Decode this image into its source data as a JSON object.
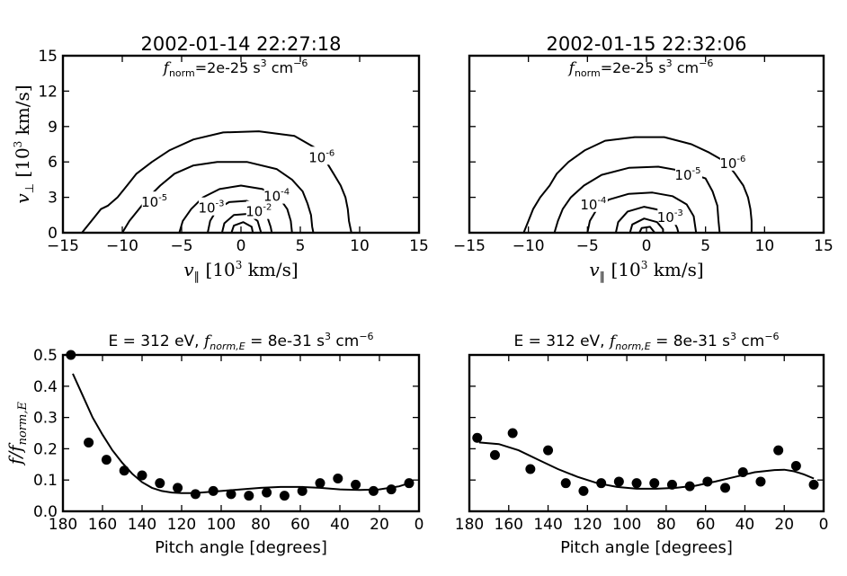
{
  "chart_data": [
    {
      "type": "contour",
      "title": "2002-01-14 22:27:18",
      "annotation": {
        "main": "f",
        "sub": "norm",
        "value": "=2e-25 s",
        "exp1": "3",
        "unit": " cm",
        "exp2": "−6"
      },
      "xlabel": {
        "sym": "v",
        "sub": "∥",
        "units": "[10",
        "exp": "3",
        "rest": " km/s]"
      },
      "ylabel": {
        "sym": "v",
        "sub": "⊥",
        "units": "[10",
        "exp": "3",
        "rest": " km/s]"
      },
      "xlim": [
        -15,
        15
      ],
      "ylim": [
        0,
        15
      ],
      "xticks": [
        "−15",
        "−10",
        "−5",
        "0",
        "5",
        "10",
        "15"
      ],
      "yticks": [
        "0",
        "3",
        "6",
        "9",
        "12",
        "15"
      ],
      "contours": [
        {
          "label": "10",
          "exp": "-6",
          "points": [
            [
              -13.4,
              0
            ],
            [
              -12.6,
              1.0
            ],
            [
              -11.8,
              2.0
            ],
            [
              -11.2,
              2.3
            ],
            [
              -10.4,
              3.0
            ],
            [
              -9.6,
              4.0
            ],
            [
              -8.8,
              5.0
            ],
            [
              -7.5,
              6.0
            ],
            [
              -6.0,
              7.0
            ],
            [
              -4.0,
              7.9
            ],
            [
              -1.5,
              8.5
            ],
            [
              1.5,
              8.6
            ],
            [
              4.5,
              8.2
            ],
            [
              6.6,
              7.0
            ],
            [
              7.2,
              6.0
            ],
            [
              7.8,
              5.0
            ],
            [
              8.4,
              4.0
            ],
            [
              8.8,
              3.0
            ],
            [
              9.0,
              2.0
            ],
            [
              9.1,
              1.0
            ],
            [
              9.3,
              0
            ]
          ],
          "label_at": [
            6.8,
            6.3
          ]
        },
        {
          "label": "10",
          "exp": "-5",
          "points": [
            [
              -10.0,
              0
            ],
            [
              -9.4,
              1.0
            ],
            [
              -8.6,
              2.0
            ],
            [
              -7.8,
              3.0
            ],
            [
              -6.8,
              4.0
            ],
            [
              -5.6,
              5.0
            ],
            [
              -4.0,
              5.7
            ],
            [
              -2.0,
              6.0
            ],
            [
              0.5,
              6.0
            ],
            [
              3.0,
              5.4
            ],
            [
              4.3,
              4.5
            ],
            [
              5.2,
              3.5
            ],
            [
              5.6,
              2.5
            ],
            [
              5.9,
              1.5
            ],
            [
              6.0,
              0.5
            ],
            [
              6.1,
              0
            ]
          ],
          "label_at": [
            -7.3,
            2.5
          ]
        },
        {
          "label": "10",
          "exp": "-4",
          "points": [
            [
              -5.2,
              0
            ],
            [
              -4.9,
              1.0
            ],
            [
              -4.2,
              2.0
            ],
            [
              -3.2,
              3.0
            ],
            [
              -1.8,
              3.7
            ],
            [
              0,
              4.0
            ],
            [
              1.8,
              3.7
            ],
            [
              3.2,
              3.0
            ],
            [
              3.9,
              2.0
            ],
            [
              4.2,
              1.0
            ],
            [
              4.3,
              0
            ]
          ],
          "label_at": [
            3.0,
            3.0
          ]
        },
        {
          "label": "10",
          "exp": "-3",
          "points": [
            [
              -2.8,
              0
            ],
            [
              -2.6,
              1.0
            ],
            [
              -2.0,
              2.0
            ],
            [
              -1.0,
              2.6
            ],
            [
              0.5,
              2.7
            ],
            [
              1.6,
              2.2
            ],
            [
              2.2,
              1.4
            ],
            [
              2.5,
              0.5
            ],
            [
              2.6,
              0
            ]
          ],
          "label_at": [
            -2.5,
            2.0
          ]
        },
        {
          "label": "10",
          "exp": "-2",
          "points": [
            [
              -1.6,
              0
            ],
            [
              -1.4,
              0.8
            ],
            [
              -0.6,
              1.5
            ],
            [
              0.6,
              1.6
            ],
            [
              1.4,
              1.0
            ],
            [
              1.7,
              0
            ]
          ],
          "label_at": [
            1.5,
            1.7
          ]
        },
        {
          "label": "",
          "exp": "",
          "points": [
            [
              -0.8,
              0
            ],
            [
              -0.6,
              0.6
            ],
            [
              0.2,
              0.9
            ],
            [
              0.9,
              0.5
            ],
            [
              1.0,
              0
            ]
          ],
          "label_at": null
        }
      ]
    },
    {
      "type": "contour",
      "title": "2002-01-15 22:32:06",
      "annotation": {
        "main": "f",
        "sub": "norm",
        "value": "=2e-25 s",
        "exp1": "3",
        "unit": " cm",
        "exp2": "−6"
      },
      "xlabel": {
        "sym": "v",
        "sub": "∥",
        "units": "[10",
        "exp": "3",
        "rest": " km/s]"
      },
      "ylabel": null,
      "xlim": [
        -15,
        15
      ],
      "ylim": [
        0,
        15
      ],
      "xticks": [
        "−15",
        "−10",
        "−5",
        "0",
        "5",
        "10",
        "15"
      ],
      "yticks": [],
      "contours": [
        {
          "label": "10",
          "exp": "-6",
          "points": [
            [
              -10.4,
              0
            ],
            [
              -10.0,
              1.0
            ],
            [
              -9.6,
              2.0
            ],
            [
              -9.0,
              3.0
            ],
            [
              -8.2,
              4.0
            ],
            [
              -7.6,
              5.0
            ],
            [
              -6.6,
              6.0
            ],
            [
              -5.2,
              7.0
            ],
            [
              -3.5,
              7.8
            ],
            [
              -1.0,
              8.1
            ],
            [
              1.5,
              8.1
            ],
            [
              3.8,
              7.5
            ],
            [
              5.3,
              6.8
            ],
            [
              6.7,
              6.0
            ],
            [
              7.5,
              5.0
            ],
            [
              8.2,
              4.0
            ],
            [
              8.6,
              3.0
            ],
            [
              8.8,
              2.0
            ],
            [
              8.9,
              1.0
            ],
            [
              8.9,
              0
            ]
          ],
          "label_at": [
            7.3,
            5.8
          ]
        },
        {
          "label": "10",
          "exp": "-5",
          "points": [
            [
              -7.8,
              0
            ],
            [
              -7.5,
              1.0
            ],
            [
              -7.1,
              2.0
            ],
            [
              -6.4,
              3.0
            ],
            [
              -5.3,
              4.0
            ],
            [
              -3.8,
              4.9
            ],
            [
              -1.5,
              5.5
            ],
            [
              1.0,
              5.6
            ],
            [
              3.2,
              5.2
            ],
            [
              5.0,
              4.6
            ],
            [
              5.6,
              3.5
            ],
            [
              6.0,
              2.3
            ],
            [
              6.1,
              1.0
            ],
            [
              6.2,
              0
            ]
          ],
          "label_at": [
            3.5,
            4.8
          ]
        },
        {
          "label": "10",
          "exp": "-4",
          "points": [
            [
              -5.0,
              0
            ],
            [
              -4.8,
              1.0
            ],
            [
              -4.2,
              2.0
            ],
            [
              -3.2,
              2.8
            ],
            [
              -1.5,
              3.3
            ],
            [
              0.5,
              3.4
            ],
            [
              2.2,
              3.1
            ],
            [
              3.4,
              2.4
            ],
            [
              4.0,
              1.4
            ],
            [
              4.2,
              0
            ]
          ],
          "label_at": [
            -4.5,
            2.3
          ]
        },
        {
          "label": "10",
          "exp": "-3",
          "points": [
            [
              -2.6,
              0
            ],
            [
              -2.4,
              0.9
            ],
            [
              -1.6,
              1.8
            ],
            [
              -0.2,
              2.2
            ],
            [
              1.2,
              1.9
            ],
            [
              2.2,
              1.2
            ],
            [
              2.6,
              0.4
            ],
            [
              2.7,
              0
            ]
          ],
          "label_at": [
            2.0,
            1.2
          ]
        },
        {
          "label": "",
          "exp": "",
          "points": [
            [
              -1.4,
              0
            ],
            [
              -1.2,
              0.7
            ],
            [
              -0.2,
              1.2
            ],
            [
              0.9,
              0.9
            ],
            [
              1.4,
              0.3
            ],
            [
              1.4,
              0
            ]
          ],
          "label_at": null
        },
        {
          "label": "",
          "exp": "",
          "points": [
            [
              -0.6,
              0
            ],
            [
              -0.4,
              0.4
            ],
            [
              0.3,
              0.5
            ],
            [
              0.7,
              0
            ]
          ],
          "label_at": null
        }
      ]
    },
    {
      "type": "scatter",
      "title": {
        "pre": "E = 312 eV, ",
        "main": "f",
        "sub": "norm,E",
        "value": " = 8e-31 s",
        "exp1": "3",
        "unit": " cm",
        "exp2": "−6"
      },
      "xlabel": "Pitch angle [degrees]",
      "ylabel": {
        "main": "f/f",
        "sub": "norm,E"
      },
      "xlim": [
        180,
        0
      ],
      "ylim": [
        0,
        0.5
      ],
      "xticks": [
        "180",
        "160",
        "140",
        "120",
        "100",
        "80",
        "60",
        "40",
        "20",
        "0"
      ],
      "yticks": [
        "0.0",
        "0.1",
        "0.2",
        "0.3",
        "0.4",
        "0.5"
      ],
      "x": [
        176,
        167,
        158,
        149,
        140,
        131,
        122,
        113,
        104,
        95,
        86,
        77,
        68,
        59,
        50,
        41,
        32,
        23,
        14,
        5
      ],
      "y": [
        0.5,
        0.22,
        0.165,
        0.13,
        0.115,
        0.09,
        0.075,
        0.055,
        0.065,
        0.055,
        0.05,
        0.06,
        0.05,
        0.065,
        0.09,
        0.105,
        0.085,
        0.065,
        0.07,
        0.09
      ],
      "fit_x": [
        175,
        170,
        165,
        160,
        155,
        150,
        145,
        140,
        135,
        130,
        125,
        120,
        115,
        110,
        100,
        90,
        80,
        70,
        60,
        50,
        40,
        30,
        20,
        10,
        5
      ],
      "fit_y": [
        0.44,
        0.37,
        0.3,
        0.245,
        0.195,
        0.155,
        0.12,
        0.093,
        0.075,
        0.065,
        0.06,
        0.058,
        0.058,
        0.06,
        0.065,
        0.07,
        0.075,
        0.078,
        0.078,
        0.075,
        0.07,
        0.068,
        0.07,
        0.08,
        0.09
      ]
    },
    {
      "type": "scatter",
      "title": {
        "pre": "E = 312 eV, ",
        "main": "f",
        "sub": "norm,E",
        "value": " = 8e-31 s",
        "exp1": "3",
        "unit": " cm",
        "exp2": "−6"
      },
      "xlabel": "Pitch angle [degrees]",
      "ylabel": null,
      "xlim": [
        180,
        0
      ],
      "ylim": [
        0,
        0.5
      ],
      "xticks": [
        "180",
        "160",
        "140",
        "120",
        "100",
        "80",
        "60",
        "40",
        "20",
        "0"
      ],
      "yticks": [],
      "x": [
        176,
        167,
        158,
        149,
        140,
        131,
        122,
        113,
        104,
        95,
        86,
        77,
        68,
        59,
        50,
        41,
        32,
        23,
        14,
        5
      ],
      "y": [
        0.235,
        0.18,
        0.25,
        0.135,
        0.195,
        0.09,
        0.065,
        0.09,
        0.095,
        0.09,
        0.09,
        0.085,
        0.08,
        0.095,
        0.075,
        0.125,
        0.095,
        0.195,
        0.145,
        0.085
      ],
      "fit_x": [
        175,
        165,
        155,
        145,
        135,
        125,
        115,
        105,
        95,
        85,
        75,
        65,
        55,
        45,
        35,
        25,
        20,
        15,
        10,
        5
      ],
      "fit_y": [
        0.22,
        0.215,
        0.195,
        0.165,
        0.135,
        0.11,
        0.09,
        0.078,
        0.072,
        0.072,
        0.075,
        0.082,
        0.095,
        0.11,
        0.125,
        0.132,
        0.133,
        0.128,
        0.118,
        0.105
      ]
    }
  ]
}
